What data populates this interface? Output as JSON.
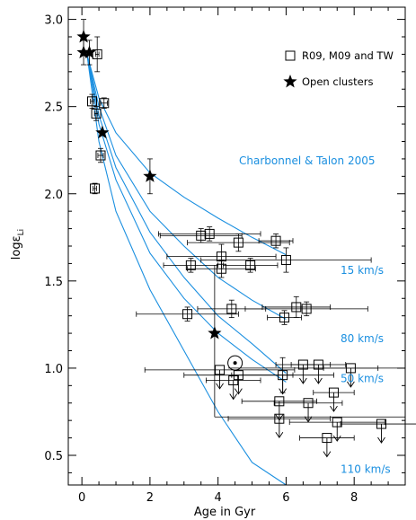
{
  "chart_data": {
    "type": "scatter",
    "xlabel": "Age in Gyr",
    "ylabel_main": "logε",
    "ylabel_sub": "Li",
    "xlim": [
      -0.4,
      9.5
    ],
    "ylim": [
      0.33,
      3.07
    ],
    "x_ticks": [
      0,
      2,
      4,
      6,
      8
    ],
    "y_ticks": [
      0.5,
      1.0,
      1.5,
      2.0,
      2.5,
      3.0
    ],
    "x_tick_labels": [
      "0",
      "2",
      "4",
      "6",
      "8"
    ],
    "y_tick_labels": [
      "0.5",
      "1.0",
      "1.5",
      "2.0",
      "2.5",
      "3.0"
    ],
    "legend": [
      {
        "marker": "square",
        "label": "R09, M09 and TW"
      },
      {
        "marker": "star",
        "label": "Open clusters"
      }
    ],
    "model_label": "Charbonnel & Talon 2005",
    "model_curve_labels": [
      {
        "label": "15 km/s",
        "x": 7.6,
        "y": 1.54
      },
      {
        "label": "80 km/s",
        "x": 7.6,
        "y": 1.15
      },
      {
        "label": "50 km/s",
        "x": 7.6,
        "y": 0.92
      },
      {
        "label": "110 km/s",
        "x": 7.6,
        "y": 0.4
      }
    ],
    "model_curves": [
      {
        "name": "15 km/s",
        "points": [
          [
            0.15,
            2.8
          ],
          [
            0.5,
            2.55
          ],
          [
            1,
            2.35
          ],
          [
            2,
            2.12
          ],
          [
            3,
            1.98
          ],
          [
            4,
            1.86
          ],
          [
            5,
            1.75
          ],
          [
            6,
            1.65
          ]
        ]
      },
      {
        "name": "80 km/s",
        "points": [
          [
            0.15,
            2.8
          ],
          [
            0.5,
            2.5
          ],
          [
            1,
            2.22
          ],
          [
            2,
            1.9
          ],
          [
            3,
            1.7
          ],
          [
            4,
            1.52
          ],
          [
            5,
            1.39
          ],
          [
            6,
            1.28
          ]
        ]
      },
      {
        "name": "50 km/s",
        "points": [
          [
            0.15,
            2.8
          ],
          [
            0.5,
            2.45
          ],
          [
            1,
            2.15
          ],
          [
            2,
            1.78
          ],
          [
            3,
            1.52
          ],
          [
            4,
            1.3
          ],
          [
            5,
            1.14
          ],
          [
            6,
            0.97
          ]
        ]
      },
      {
        "name": "model 4",
        "points": [
          [
            0.15,
            2.8
          ],
          [
            0.5,
            2.4
          ],
          [
            1,
            2.08
          ],
          [
            2,
            1.66
          ],
          [
            3,
            1.4
          ],
          [
            4,
            1.2
          ],
          [
            5,
            1.05
          ],
          [
            6,
            0.92
          ]
        ]
      },
      {
        "name": "110 km/s",
        "points": [
          [
            0.15,
            2.8
          ],
          [
            0.5,
            2.3
          ],
          [
            1,
            1.9
          ],
          [
            2,
            1.45
          ],
          [
            3,
            1.1
          ],
          [
            4,
            0.75
          ],
          [
            5,
            0.46
          ],
          [
            6,
            0.33
          ]
        ]
      }
    ],
    "open_clusters": [
      {
        "x": 0.05,
        "y": 2.9,
        "yerr": 0.1
      },
      {
        "x": 0.05,
        "y": 2.81,
        "yerr": 0.07
      },
      {
        "x": 0.22,
        "y": 2.81,
        "yerr": 0.07
      },
      {
        "x": 0.6,
        "y": 2.35,
        "yerr": 0.0
      },
      {
        "x": 2.0,
        "y": 2.1,
        "yerr": 0.1
      },
      {
        "x": 3.9,
        "y": 1.2,
        "yerr": 0.0
      }
    ],
    "field_stars": [
      {
        "x": 0.3,
        "y": 2.53,
        "xerr": 0.05,
        "yerr": 0.04,
        "upper": false
      },
      {
        "x": 0.42,
        "y": 2.46,
        "xerr": 0.05,
        "yerr": 0.04,
        "upper": false
      },
      {
        "x": 0.65,
        "y": 2.52,
        "xerr": 0.1,
        "yerr": 0.03,
        "upper": false
      },
      {
        "x": 0.55,
        "y": 2.22,
        "xerr": 0.08,
        "yerr": 0.04,
        "upper": false
      },
      {
        "x": 0.38,
        "y": 2.03,
        "xerr": 0.05,
        "yerr": 0.03,
        "upper": false
      },
      {
        "x": 0.45,
        "y": 2.8,
        "xerr": 0.05,
        "yerr": 0.1,
        "upper": false
      },
      {
        "x": 3.5,
        "y": 1.76,
        "xerr": 1.2,
        "yerr": 0.04,
        "upper": false
      },
      {
        "x": 3.75,
        "y": 1.77,
        "xerr": 1.5,
        "yerr": 0.04,
        "upper": false
      },
      {
        "x": 4.6,
        "y": 1.72,
        "xerr": 1.5,
        "yerr": 0.05,
        "upper": false
      },
      {
        "x": 5.7,
        "y": 1.73,
        "xerr": 0.5,
        "yerr": 0.04,
        "upper": false
      },
      {
        "x": 4.1,
        "y": 1.64,
        "xerr": 1.6,
        "yerr": 0.07,
        "upper": false
      },
      {
        "x": 6.0,
        "y": 1.62,
        "xerr": 2.5,
        "yerr": 0.07,
        "upper": false
      },
      {
        "x": 3.2,
        "y": 1.59,
        "xerr": 0.8,
        "yerr": 0.04,
        "upper": false
      },
      {
        "x": 4.1,
        "y": 1.57,
        "xerr": 1.0,
        "yerr": 0.05,
        "upper": false
      },
      {
        "x": 4.95,
        "y": 1.59,
        "xerr": 0.8,
        "yerr": 0.04,
        "upper": false
      },
      {
        "x": 3.1,
        "y": 1.31,
        "xerr": 1.5,
        "yerr": 0.04,
        "upper": false
      },
      {
        "x": 4.4,
        "y": 1.34,
        "xerr": 1.0,
        "yerr": 0.05,
        "upper": false
      },
      {
        "x": 6.3,
        "y": 1.35,
        "xerr": 1.0,
        "yerr": 0.06,
        "upper": false
      },
      {
        "x": 6.6,
        "y": 1.34,
        "xerr": 1.8,
        "yerr": 0.04,
        "upper": false
      },
      {
        "x": 5.95,
        "y": 1.29,
        "xerr": 0.5,
        "yerr": 0.04,
        "upper": false
      },
      {
        "x": 4.5,
        "y": 1.03,
        "xerr": 0.0,
        "yerr": 0.0,
        "upper": false,
        "sun": true
      },
      {
        "x": 4.05,
        "y": 0.99,
        "xerr": 2.2,
        "yerr": 0.0,
        "upper": true
      },
      {
        "x": 4.6,
        "y": 0.96,
        "xerr": 1.6,
        "yerr": 0.0,
        "upper": true
      },
      {
        "x": 5.9,
        "y": 0.96,
        "xerr": 1.5,
        "yerr": 0.1,
        "upper": true
      },
      {
        "x": 6.5,
        "y": 1.02,
        "xerr": 0.8,
        "yerr": 0.0,
        "upper": true
      },
      {
        "x": 6.95,
        "y": 1.02,
        "xerr": 0.8,
        "yerr": 0.0,
        "upper": true
      },
      {
        "x": 7.9,
        "y": 1.0,
        "xerr": 0.8,
        "yerr": 0.0,
        "upper": true
      },
      {
        "x": 4.45,
        "y": 0.93,
        "xerr": 0.8,
        "yerr": 0.0,
        "upper": true
      },
      {
        "x": 5.8,
        "y": 0.81,
        "xerr": 1.1,
        "yerr": 0.0,
        "upper": true
      },
      {
        "x": 6.65,
        "y": 0.8,
        "xerr": 1.0,
        "yerr": 0.0,
        "upper": true
      },
      {
        "x": 7.4,
        "y": 0.86,
        "xerr": 0.6,
        "yerr": 0.0,
        "upper": true
      },
      {
        "x": 5.8,
        "y": 0.71,
        "xerr": 1.5,
        "yerr": 0.0,
        "upper": true
      },
      {
        "x": 7.5,
        "y": 0.69,
        "xerr": 1.4,
        "yerr": 0.0,
        "upper": true
      },
      {
        "x": 8.8,
        "y": 0.68,
        "xerr": 1.2,
        "yerr": 0.0,
        "upper": true
      },
      {
        "x": 7.2,
        "y": 0.6,
        "xerr": 0.8,
        "yerr": 0.0,
        "upper": true
      }
    ],
    "extra_bars": [
      {
        "x1": 3.9,
        "x2": 3.9,
        "y1": 0.72,
        "y2": 1.59
      },
      {
        "x1": 4.3,
        "x2": 9.5,
        "y1": 1.0,
        "y2": 1.0
      },
      {
        "x1": 3.9,
        "x2": 9.5,
        "y1": 0.72,
        "y2": 0.72
      }
    ],
    "colors": {
      "model": "#1a8fe0",
      "points": "#000000"
    }
  }
}
